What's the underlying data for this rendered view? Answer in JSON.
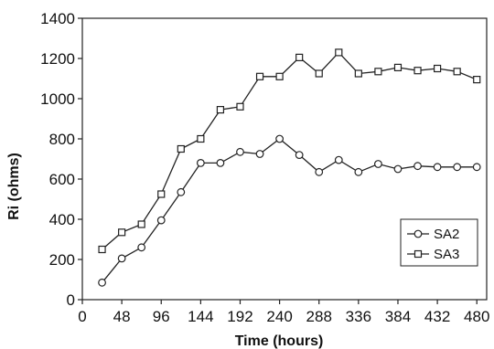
{
  "chart_data": {
    "type": "line",
    "xlabel": "Time (hours)",
    "ylabel": "Ri (ohms)",
    "xlim": [
      0,
      492
    ],
    "ylim": [
      0,
      1400
    ],
    "xticks": [
      0,
      48,
      96,
      144,
      192,
      240,
      288,
      336,
      384,
      432,
      480
    ],
    "yticks": [
      0,
      200,
      400,
      600,
      800,
      1000,
      1200,
      1400
    ],
    "grid": false,
    "legend_position": "bottom-right",
    "x": [
      24,
      48,
      72,
      96,
      120,
      144,
      168,
      192,
      216,
      240,
      264,
      288,
      312,
      336,
      360,
      384,
      408,
      432,
      456,
      480
    ],
    "series": [
      {
        "name": "SA2",
        "marker": "circle",
        "values": [
          85,
          205,
          260,
          395,
          535,
          680,
          680,
          735,
          725,
          800,
          720,
          635,
          695,
          635,
          675,
          650,
          665,
          660,
          660,
          660
        ]
      },
      {
        "name": "SA3",
        "marker": "square",
        "values": [
          250,
          335,
          375,
          525,
          750,
          800,
          945,
          960,
          1110,
          1110,
          1205,
          1125,
          1230,
          1125,
          1135,
          1155,
          1140,
          1150,
          1135,
          1095
        ]
      }
    ]
  }
}
